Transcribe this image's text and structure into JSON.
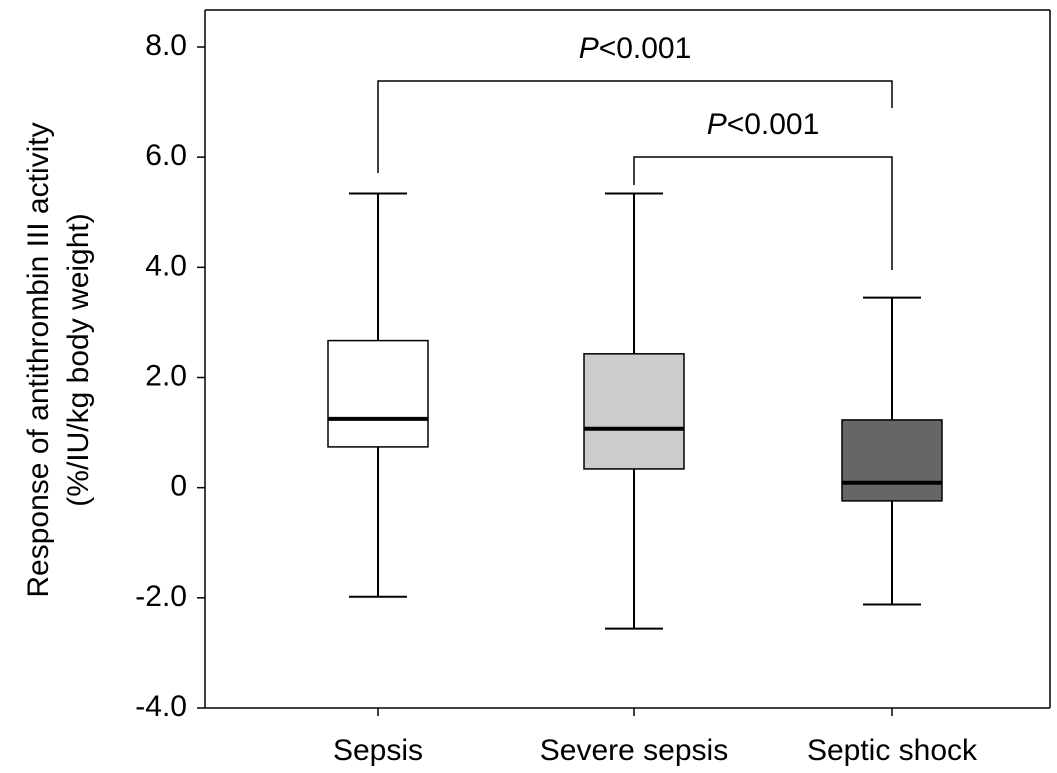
{
  "chart_data": {
    "type": "box",
    "y_label_lines": [
      "Response of antithrombin III activity",
      "(%/IU/kg body weight)"
    ],
    "categories": [
      "Sepsis",
      "Severe sepsis",
      "Septic shock"
    ],
    "colors": [
      "#ffffff",
      "#cccccc",
      "#666666"
    ],
    "min": [
      -1.98,
      -2.56,
      -2.12
    ],
    "q1": [
      0.74,
      0.34,
      -0.24
    ],
    "median": [
      1.25,
      1.07,
      0.09
    ],
    "q3": [
      2.67,
      2.43,
      1.23
    ],
    "max": [
      5.34,
      5.34,
      3.45
    ],
    "ylim": [
      -4,
      8
    ],
    "yticks": [
      {
        "value": -4,
        "label": "-4.0"
      },
      {
        "value": -2,
        "label": "-2.0"
      },
      0,
      {
        "value": 2,
        "label": "2.0"
      },
      {
        "value": 4,
        "label": "4.0"
      },
      {
        "value": 6,
        "label": "6.0"
      },
      {
        "value": 8,
        "label": "8.0"
      }
    ],
    "comparisons": [
      {
        "from": "Sepsis",
        "to": "Septic shock",
        "p_symbol": "P",
        "p_text": "<0.001"
      },
      {
        "from": "Severe sepsis",
        "to": "Septic shock",
        "p_symbol": "P",
        "p_text": "<0.001"
      }
    ]
  }
}
